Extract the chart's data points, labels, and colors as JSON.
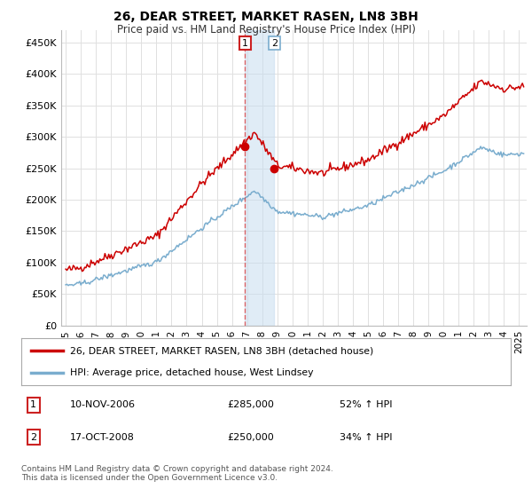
{
  "title": "26, DEAR STREET, MARKET RASEN, LN8 3BH",
  "subtitle": "Price paid vs. HM Land Registry's House Price Index (HPI)",
  "ylabel_ticks": [
    "£0",
    "£50K",
    "£100K",
    "£150K",
    "£200K",
    "£250K",
    "£300K",
    "£350K",
    "£400K",
    "£450K"
  ],
  "ylim": [
    0,
    470000
  ],
  "xlim_start": 1994.7,
  "xlim_end": 2025.5,
  "sale1_date": 2006.87,
  "sale1_price": 285000,
  "sale2_date": 2008.8,
  "sale2_price": 250000,
  "sale1_text": "10-NOV-2006",
  "sale1_amount": "£285,000",
  "sale1_hpi": "52% ↑ HPI",
  "sale2_text": "17-OCT-2008",
  "sale2_amount": "£250,000",
  "sale2_hpi": "34% ↑ HPI",
  "legend_line1": "26, DEAR STREET, MARKET RASEN, LN8 3BH (detached house)",
  "legend_line2": "HPI: Average price, detached house, West Lindsey",
  "footer": "Contains HM Land Registry data © Crown copyright and database right 2024.\nThis data is licensed under the Open Government Licence v3.0.",
  "line_color_red": "#cc0000",
  "line_color_blue": "#7aadce",
  "shade_color": "#c8ddf0",
  "vline_color": "#dd4444",
  "background_color": "#ffffff",
  "grid_color": "#e0e0e0",
  "box_border_red": "#cc2222",
  "box_border_blue": "#7aadce"
}
